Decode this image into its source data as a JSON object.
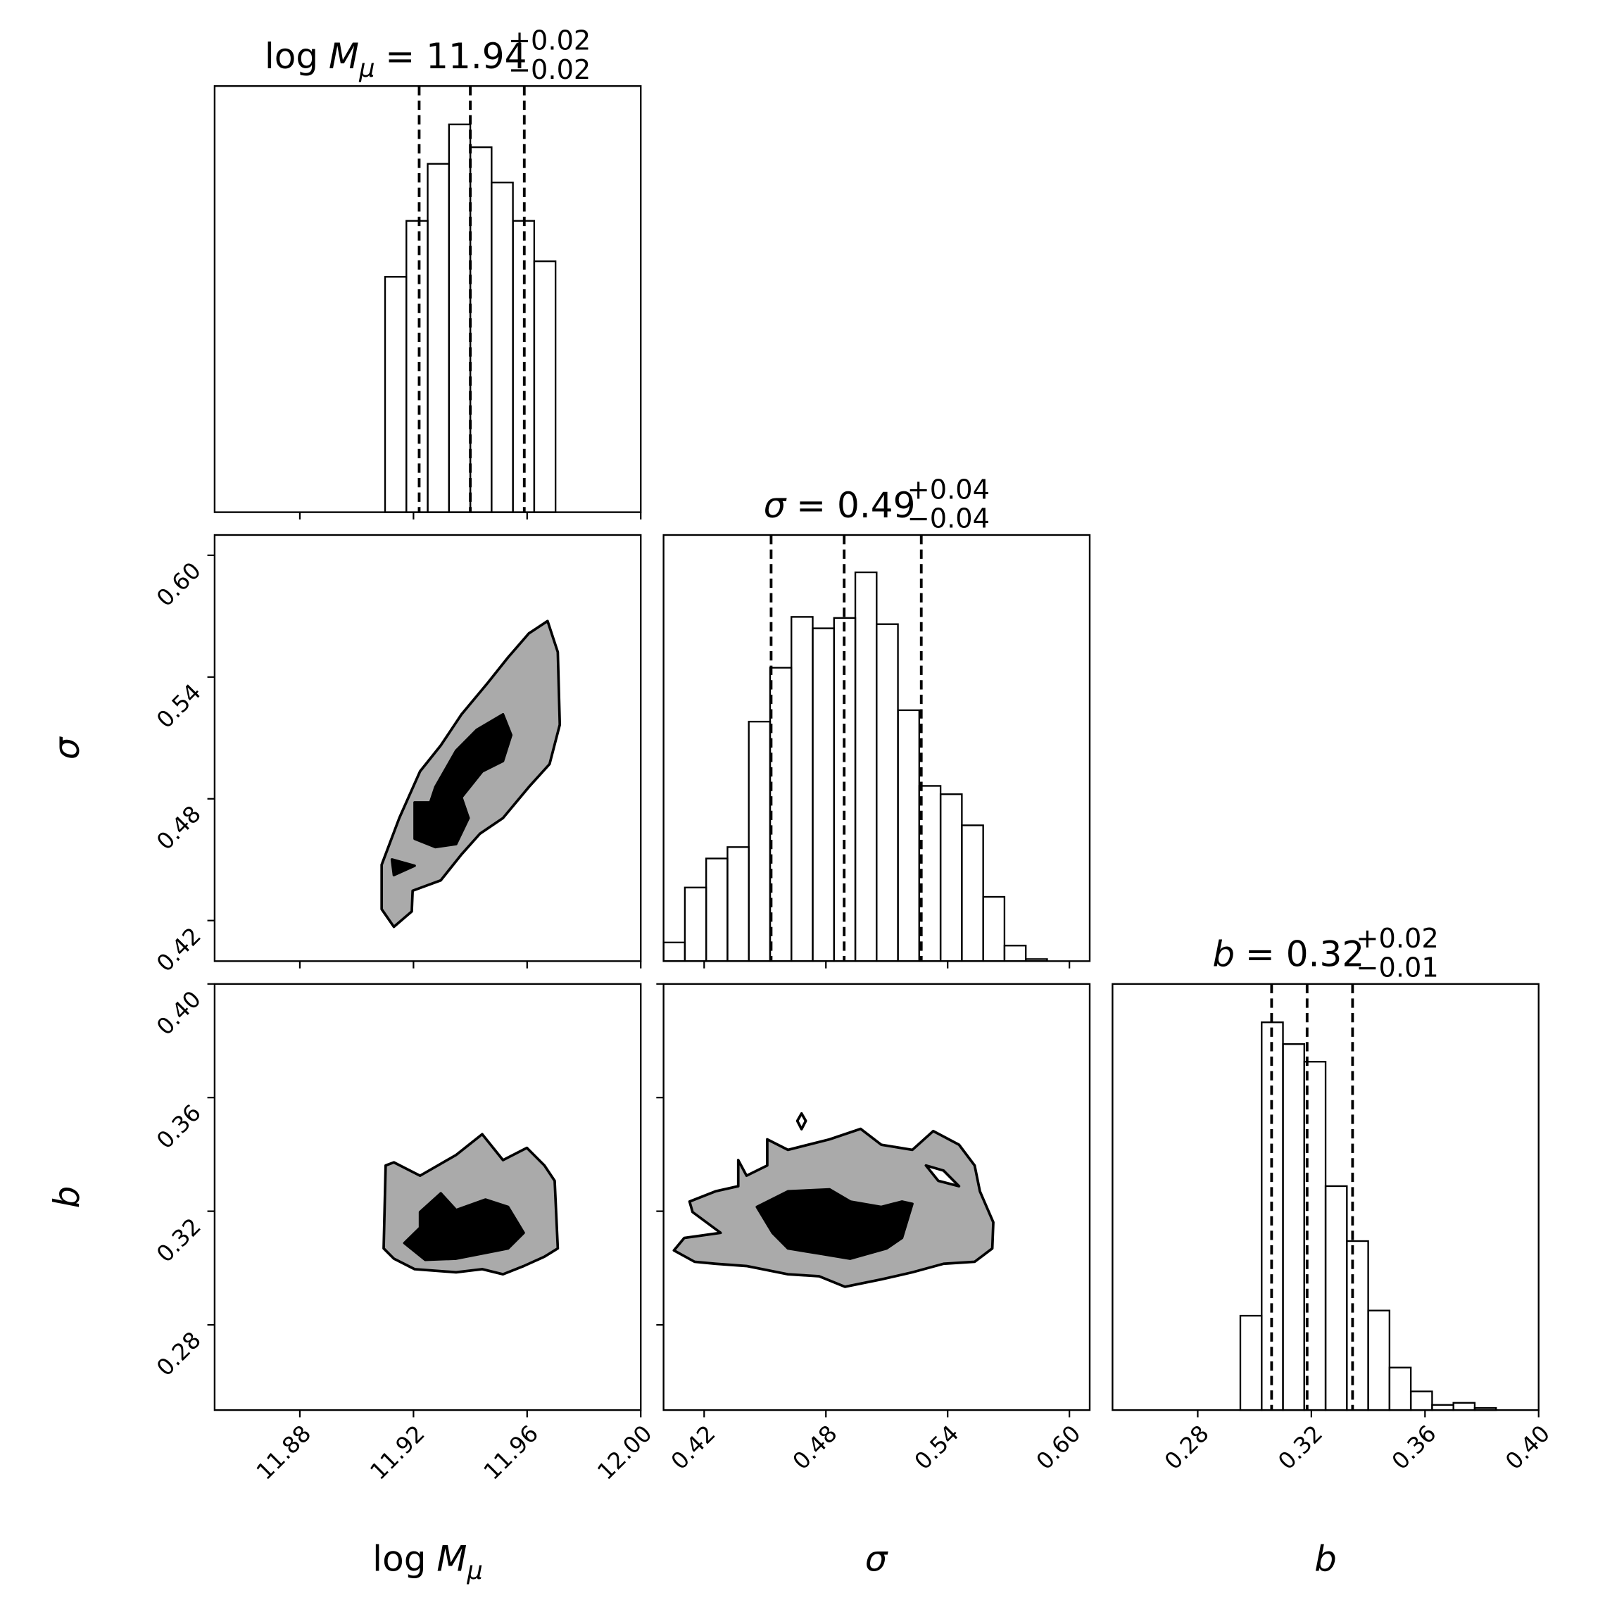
{
  "chart_data": {
    "type": "corner",
    "line_color": "#000000",
    "parameters": [
      {
        "prefix": "log",
        "symbol": "M",
        "subscript": "μ",
        "value": "= 11.94",
        "plus": "+0.02",
        "minus": "−0.02",
        "lim": [
          11.85,
          12.0
        ],
        "ticks": [
          11.88,
          11.92,
          11.96,
          {
            "value": 12,
            "label": "12.00"
          }
        ],
        "bins": [
          11.85,
          11.8575,
          11.865,
          11.8725,
          11.88,
          11.8875,
          11.895,
          11.9025,
          11.91,
          11.9175,
          11.925,
          11.9325,
          11.94,
          11.9475,
          11.955,
          11.9625,
          11.97,
          11.9775,
          11.985,
          11.9925,
          12.0
        ],
        "counts": [
          0,
          0,
          0,
          0,
          0,
          0,
          0,
          0,
          227,
          281,
          336,
          374,
          352,
          318,
          281,
          242,
          0,
          0,
          0,
          0
        ],
        "count_lim": [
          0,
          411
        ],
        "quantiles": [
          11.922,
          11.94,
          11.959
        ]
      },
      {
        "symbol": "σ",
        "value": "= 0.49",
        "plus": "+0.04",
        "minus": "−0.04",
        "lim": [
          0.4,
          0.61
        ],
        "ticks": [
          0.42,
          0.48,
          0.54,
          {
            "value": 0.6,
            "label": "0.60"
          }
        ],
        "bins": [
          0.4,
          0.4105,
          0.421,
          0.4315,
          0.442,
          0.4525,
          0.463,
          0.4735,
          0.484,
          0.4945,
          0.505,
          0.5155,
          0.526,
          0.5365,
          0.547,
          0.5575,
          0.568,
          0.5785,
          0.589,
          0.5995,
          0.61
        ],
        "counts": [
          18,
          71,
          99,
          110,
          231,
          283,
          332,
          321,
          331,
          375,
          325,
          242,
          169,
          161,
          131,
          62,
          15,
          2,
          0,
          0
        ],
        "count_lim": [
          0,
          411
        ],
        "quantiles": [
          0.453,
          0.489,
          0.527
        ]
      },
      {
        "symbol": "b",
        "value": "= 0.32",
        "plus": "+0.02",
        "minus": "−0.01",
        "lim": [
          0.25,
          0.4
        ],
        "ticks": [
          0.28,
          0.32,
          0.36,
          {
            "value": 0.4,
            "label": "0.40"
          }
        ],
        "bins": [
          0.25,
          0.2575,
          0.265,
          0.2725,
          0.28,
          0.2875,
          0.295,
          0.3025,
          0.31,
          0.3175,
          0.325,
          0.3325,
          0.34,
          0.3475,
          0.355,
          0.3625,
          0.37,
          0.3775,
          0.385,
          0.3925,
          0.4
        ],
        "counts": [
          0,
          0,
          0,
          0,
          0,
          0,
          91,
          374,
          353,
          336,
          216,
          163,
          96,
          41,
          18,
          5,
          7,
          2,
          0,
          0
        ],
        "count_lim": [
          0,
          411
        ],
        "quantiles": [
          0.306,
          0.3185,
          0.3345
        ]
      }
    ],
    "contours": [
      [
        {
          "fill": "#aaaaaa",
          "x": [
            11.9131,
            11.9194,
            11.9197,
            11.9296,
            11.9369,
            11.9434,
            11.9515,
            11.9606,
            11.9679,
            11.9715,
            11.9708,
            11.9672,
            11.9606,
            11.9533,
            11.946,
            11.9369,
            11.9296,
            11.9223,
            11.915,
            11.9088,
            11.9088
          ],
          "y": [
            0.4169,
            0.4245,
            0.4347,
            0.4398,
            0.4526,
            0.4628,
            0.4705,
            0.4858,
            0.4971,
            0.5165,
            0.5523,
            0.5676,
            0.5615,
            0.5497,
            0.5369,
            0.5216,
            0.5063,
            0.4935,
            0.4705,
            0.4475,
            0.4256
          ]
        },
        {
          "fill": "#000000",
          "x": [
            11.9204,
            11.9277,
            11.935,
            11.9394,
            11.9369,
            11.9442,
            11.9515,
            11.9544,
            11.9515,
            11.9423,
            11.935,
            11.9277,
            11.9259,
            11.9204
          ],
          "y": [
            0.4603,
            0.4562,
            0.4577,
            0.4705,
            0.4807,
            0.4935,
            0.4986,
            0.5114,
            0.5216,
            0.514,
            0.5037,
            0.4858,
            0.4782,
            0.4782
          ]
        },
        {
          "fill": "#000000",
          "x": [
            11.9124,
            11.9204,
            11.9131
          ],
          "y": [
            0.4501,
            0.447,
            0.4424
          ]
        }
      ],
      [
        {
          "fill": "#aaaaaa",
          "x": [
            11.9102,
            11.9131,
            11.9223,
            11.935,
            11.9442,
            11.9515,
            11.9599,
            11.9661,
            11.9697,
            11.9708,
            11.9661,
            11.9588,
            11.9515,
            11.9442,
            11.935,
            11.9204,
            11.9131,
            11.9095
          ],
          "y": [
            0.3361,
            0.3372,
            0.3325,
            0.3398,
            0.3471,
            0.338,
            0.3423,
            0.3361,
            0.3307,
            0.3069,
            0.304,
            0.3007,
            0.2978,
            0.2996,
            0.2985,
            0.2996,
            0.3033,
            0.3069
          ]
        },
        {
          "fill": "#000000",
          "x": [
            11.9168,
            11.9223,
            11.9223,
            11.9296,
            11.935,
            11.9453,
            11.9533,
            11.9588,
            11.9533,
            11.9442,
            11.935,
            11.9241
          ],
          "y": [
            0.3088,
            0.3142,
            0.3197,
            0.3263,
            0.3204,
            0.3241,
            0.3215,
            0.3124,
            0.3069,
            0.3051,
            0.3033,
            0.3029
          ]
        }
      ],
      [
        {
          "fill": "#aaaaaa",
          "x": [
            0.4051,
            0.4102,
            0.4281,
            0.4143,
            0.4128,
            0.4256,
            0.4368,
            0.4368,
            0.4409,
            0.4511,
            0.4511,
            0.4613,
            0.4818,
            0.4971,
            0.5073,
            0.5226,
            0.5329,
            0.5456,
            0.5533,
            0.5559,
            0.5625,
            0.562,
            0.5533,
            0.538,
            0.5226,
            0.5073,
            0.4894,
            0.4767,
            0.4613,
            0.4409,
            0.4256,
            0.4153
          ],
          "y": [
            0.3062,
            0.3106,
            0.3124,
            0.3197,
            0.3234,
            0.327,
            0.3288,
            0.338,
            0.3325,
            0.3361,
            0.3453,
            0.3416,
            0.3453,
            0.349,
            0.3434,
            0.3416,
            0.3482,
            0.3434,
            0.3361,
            0.327,
            0.3161,
            0.3069,
            0.3022,
            0.3015,
            0.2985,
            0.296,
            0.2934,
            0.2971,
            0.2978,
            0.3007,
            0.3015,
            0.3022
          ]
        },
        {
          "fill": "#000000",
          "x": [
            0.446,
            0.4613,
            0.4818,
            0.492,
            0.5073,
            0.5175,
            0.5226,
            0.5175,
            0.5099,
            0.492,
            0.4767,
            0.4613,
            0.4537
          ],
          "y": [
            0.3215,
            0.327,
            0.3277,
            0.3234,
            0.3215,
            0.3234,
            0.3226,
            0.3106,
            0.3069,
            0.3033,
            0.3051,
            0.3069,
            0.3124
          ]
        },
        {
          "fill": "#ffffff",
          "x": [
            0.5293,
            0.538,
            0.5456,
            0.5354
          ],
          "y": [
            0.3361,
            0.3343,
            0.3288,
            0.3307
          ]
        },
        {
          "fill": "none",
          "x": [
            0.468,
            0.4701,
            0.468,
            0.4659
          ],
          "y": [
            0.3544,
            0.3518,
            0.3489,
            0.3518
          ]
        }
      ]
    ]
  }
}
